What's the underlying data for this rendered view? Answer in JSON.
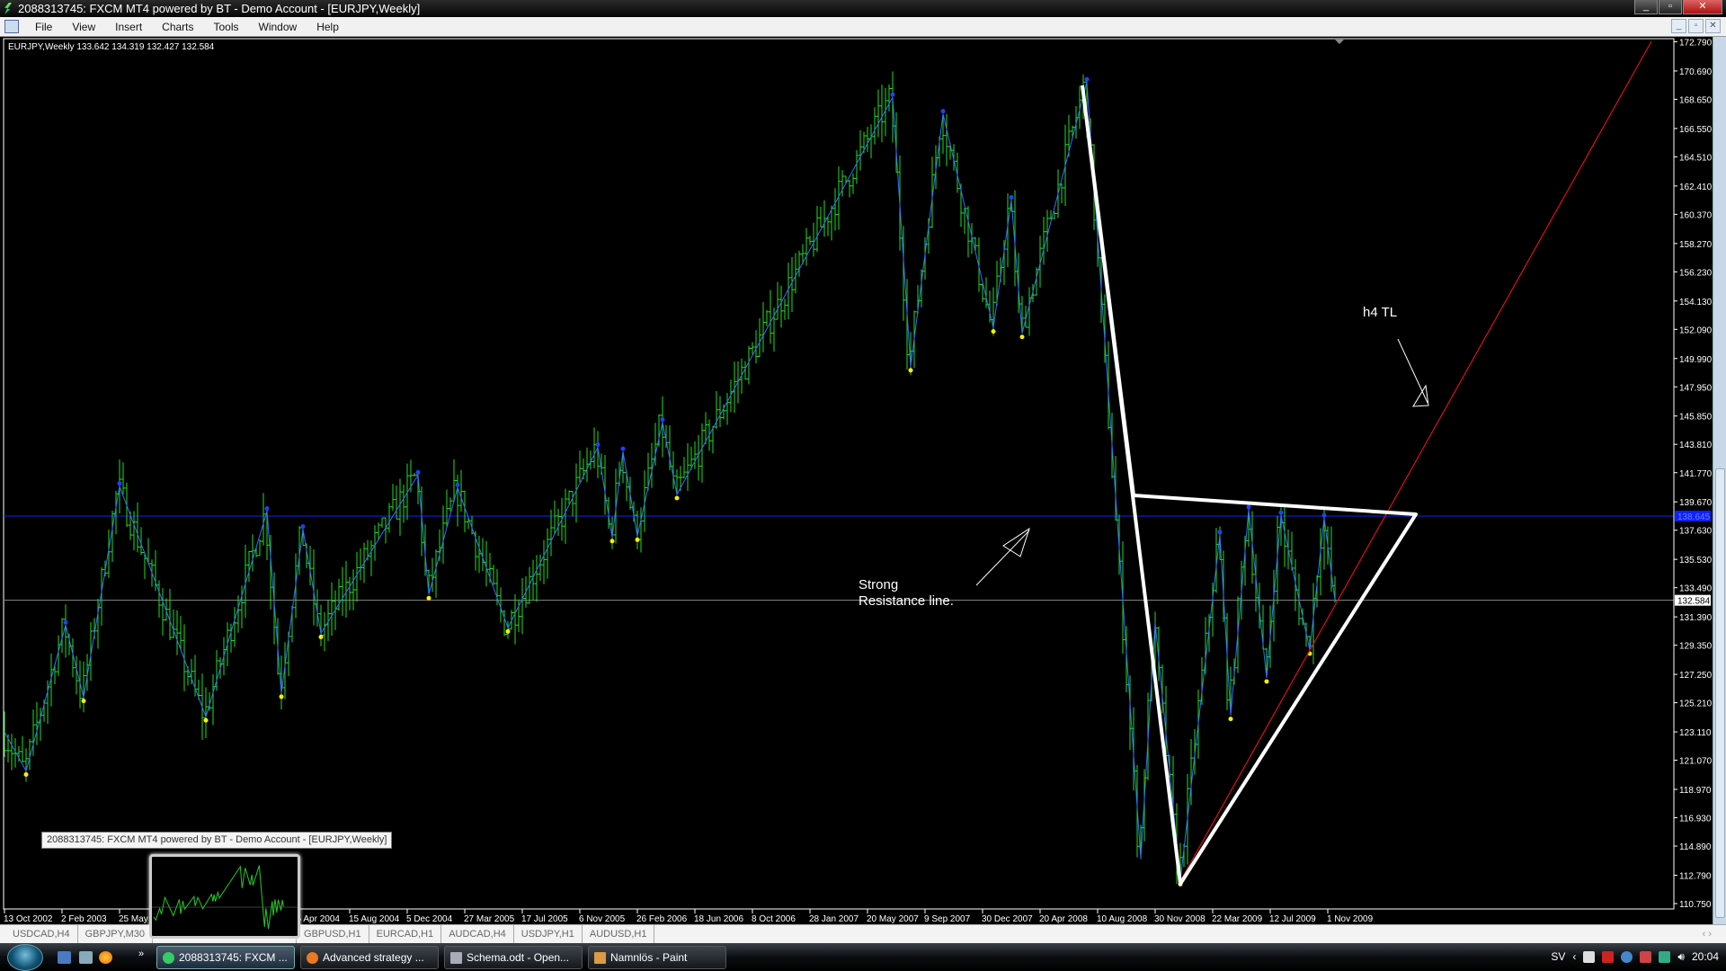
{
  "window": {
    "title": "2088313745: FXCM MT4 powered by BT - Demo Account - [EURJPY,Weekly]"
  },
  "menu": {
    "items": [
      "File",
      "View",
      "Insert",
      "Charts",
      "Tools",
      "Window",
      "Help"
    ]
  },
  "chart": {
    "info": "EURJPY,Weekly  133.642 134.319 132.427 132.584",
    "annotations": {
      "resistance": "Strong",
      "resistance2": "Resistance line.",
      "h4": "h4 TL"
    }
  },
  "chart_data": {
    "type": "ohlc-bar",
    "symbol": "EURJPY",
    "timeframe": "Weekly",
    "last": {
      "open": 133.642,
      "high": 134.319,
      "low": 132.427,
      "close": 132.584
    },
    "ylim": [
      110.75,
      172.79
    ],
    "y_ticks": [
      "172.790",
      "170.690",
      "168.650",
      "166.550",
      "164.510",
      "162.410",
      "160.370",
      "158.270",
      "156.230",
      "154.130",
      "152.090",
      "149.990",
      "147.950",
      "145.850",
      "143.810",
      "141.770",
      "139.670",
      "137.630",
      "135.530",
      "133.490",
      "131.390",
      "129.350",
      "127.250",
      "125.210",
      "123.110",
      "121.070",
      "118.970",
      "116.930",
      "114.890",
      "112.790",
      "110.750"
    ],
    "x_ticks": [
      "13 Oct 2002",
      "2 Feb 2003",
      "25 May 2003",
      "25 Apr 2004",
      "15 Aug 2004",
      "5 Dec 2004",
      "27 Mar 2005",
      "17 Jul 2005",
      "6 Nov 2005",
      "26 Feb 2006",
      "18 Jun 2006",
      "8 Oct 2006",
      "28 Jan 2007",
      "20 May 2007",
      "9 Sep 2007",
      "30 Dec 2007",
      "20 Apr 2008",
      "10 Aug 2008",
      "30 Nov 2008",
      "22 Mar 2009",
      "12 Jul 2009",
      "1 Nov 2009"
    ],
    "x_tick_dates": [
      "2002-10-13",
      "2003-02-02",
      "2003-05-25",
      "2004-04-25",
      "2004-08-15",
      "2004-12-05",
      "2005-03-27",
      "2005-07-17",
      "2005-11-06",
      "2006-02-26",
      "2006-06-18",
      "2006-10-08",
      "2007-01-28",
      "2007-05-20",
      "2007-09-09",
      "2007-12-30",
      "2008-04-20",
      "2008-08-10",
      "2008-11-30",
      "2009-03-22",
      "2009-07-12",
      "2009-11-01"
    ],
    "horizontal_lines": [
      {
        "price": 138.645,
        "label": "138.645",
        "color": "#1020ff"
      },
      {
        "price": 132.584,
        "label": "132.584",
        "color": "#888888"
      }
    ],
    "zigzag_pivots": [
      [
        "2002-10-13",
        123.1,
        "s"
      ],
      [
        "2002-11-24",
        120.3,
        "L"
      ],
      [
        "2003-02-09",
        130.8,
        "H"
      ],
      [
        "2003-03-16",
        125.6,
        "L"
      ],
      [
        "2003-05-25",
        140.8,
        "H"
      ],
      [
        "2003-11-09",
        124.2,
        "L"
      ],
      [
        "2004-03-07",
        139.0,
        "H"
      ],
      [
        "2004-04-04",
        125.9,
        "L"
      ],
      [
        "2004-05-16",
        137.7,
        "H"
      ],
      [
        "2004-06-20",
        130.2,
        "L"
      ],
      [
        "2004-12-26",
        141.6,
        "H"
      ],
      [
        "2005-01-16",
        133.0,
        "L"
      ],
      [
        "2005-03-13",
        140.7,
        "H"
      ],
      [
        "2005-06-19",
        130.6,
        "L"
      ],
      [
        "2005-12-11",
        143.6,
        "H"
      ],
      [
        "2006-01-08",
        137.1,
        "L"
      ],
      [
        "2006-01-29",
        143.3,
        "H"
      ],
      [
        "2006-02-26",
        137.2,
        "L"
      ],
      [
        "2006-04-16",
        145.4,
        "H"
      ],
      [
        "2006-05-14",
        140.2,
        "L"
      ],
      [
        "2007-07-08",
        168.8,
        "H"
      ],
      [
        "2007-08-12",
        149.4,
        "L"
      ],
      [
        "2007-10-14",
        167.6,
        "H"
      ],
      [
        "2008-01-20",
        152.2,
        "L"
      ],
      [
        "2008-02-24",
        161.4,
        "H"
      ],
      [
        "2008-03-16",
        151.8,
        "L"
      ],
      [
        "2008-07-20",
        169.9,
        "H"
      ],
      [
        "2008-11-02",
        114.0,
        "s"
      ],
      [
        "2008-11-30",
        131.0,
        "s"
      ],
      [
        "2009-01-18",
        112.4,
        "L"
      ],
      [
        "2009-04-05",
        137.3,
        "H"
      ],
      [
        "2009-04-26",
        124.3,
        "L"
      ],
      [
        "2009-05-31",
        139.1,
        "H"
      ],
      [
        "2009-07-05",
        127.0,
        "L"
      ],
      [
        "2009-08-02",
        138.7,
        "H"
      ],
      [
        "2009-09-27",
        129.0,
        "L"
      ],
      [
        "2009-10-25",
        138.5,
        "H"
      ],
      [
        "2009-11-15",
        132.584,
        "s"
      ]
    ],
    "colors": {
      "bars": "#22dd22",
      "zigzag": "#3070ff",
      "pivot_high": "#2040ff",
      "pivot_low": "#ffee00",
      "drawings": "#ffffff",
      "trendline": "#dd1111",
      "grid_line": "#888888"
    }
  },
  "tabs": [
    "USDCAD,H4",
    "GBPJPY,M30",
    "GBPUSD,H1",
    "EURCAD,H1",
    "AUDCAD,H4",
    "USDJPY,H1",
    "AUDUSD,H1"
  ],
  "tooltip": "2088313745: FXCM MT4 powered by BT - Demo Account - [EURJPY,Weekly]",
  "taskbar": {
    "tasks": [
      "2088313745: FXCM ...",
      "Advanced strategy ...",
      "Schema.odt - Open...",
      "Namnlös - Paint"
    ],
    "lang": "SV",
    "clock": "20:04"
  }
}
